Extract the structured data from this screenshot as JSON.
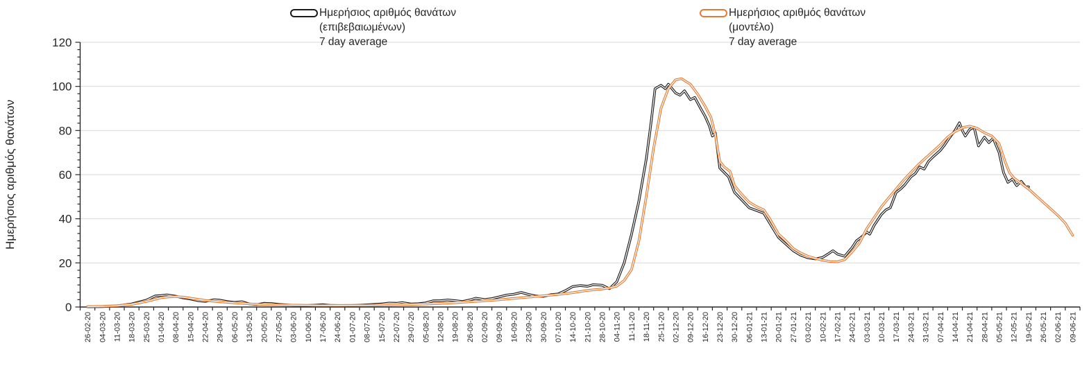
{
  "chart_data": {
    "type": "line",
    "title": "",
    "xlabel": "",
    "ylabel": "Ημερήσιος αριθμός θανάτων",
    "ylim": [
      0,
      120
    ],
    "y_ticks": [
      0,
      20,
      40,
      60,
      80,
      100,
      120
    ],
    "y_minor_ticks_per_major": 6,
    "grid": "horizontal-major-only",
    "legend_position": "top",
    "x_tick_label_rotation": -90,
    "categories": [
      "26-02-20",
      "04-03-20",
      "11-03-20",
      "18-03-20",
      "25-03-20",
      "01-04-20",
      "08-04-20",
      "15-04-20",
      "22-04-20",
      "29-04-20",
      "06-05-20",
      "13-05-20",
      "20-05-20",
      "27-05-20",
      "03-06-20",
      "10-06-20",
      "17-06-20",
      "24-06-20",
      "01-07-20",
      "08-07-20",
      "15-07-20",
      "22-07-20",
      "29-07-20",
      "05-08-20",
      "12-08-20",
      "19-08-20",
      "26-08-20",
      "02-09-20",
      "09-09-20",
      "16-09-20",
      "23-09-20",
      "30-09-20",
      "07-10-20",
      "14-10-20",
      "21-10-20",
      "28-10-20",
      "04-11-20",
      "11-11-20",
      "18-11-20",
      "25-11-20",
      "02-12-20",
      "09-12-20",
      "16-12-20",
      "23-12-20",
      "30-12-20",
      "06-01-21",
      "13-01-21",
      "20-01-21",
      "27-01-21",
      "03-02-21",
      "10-02-21",
      "17-02-21",
      "24-02-21",
      "03-03-21",
      "10-03-21",
      "17-03-21",
      "24-03-21",
      "31-03-21",
      "07-04-21",
      "14-04-21",
      "21-04-21",
      "28-04-21",
      "05-05-21",
      "12-05-21",
      "19-05-21",
      "26-05-21",
      "02-06-21",
      "09-06-21"
    ],
    "series": [
      {
        "name": "Ημερήσιος αριθμός θανάτων (επιβεβαιωμένων) 7 day average",
        "legend_lines": [
          "Ημερήσιος αριθμός θανάτων",
          "(επιβεβαιωμένων)",
          "7 day average"
        ],
        "color": "#1a1a1a",
        "points": [
          [
            0,
            0.1
          ],
          [
            1,
            0.2
          ],
          [
            2,
            0.5
          ],
          [
            3,
            1.4
          ],
          [
            4,
            3.1
          ],
          [
            4.6,
            5.0
          ],
          [
            5,
            5.2
          ],
          [
            5.4,
            5.5
          ],
          [
            6,
            4.9
          ],
          [
            6.5,
            4.1
          ],
          [
            7,
            3.6
          ],
          [
            7.5,
            2.9
          ],
          [
            8,
            2.5
          ],
          [
            8.6,
            3.3
          ],
          [
            9,
            3.1
          ],
          [
            9.5,
            2.5
          ],
          [
            10,
            2.1
          ],
          [
            10.5,
            2.4
          ],
          [
            11,
            1.4
          ],
          [
            11.5,
            1.1
          ],
          [
            12,
            1.7
          ],
          [
            12.5,
            1.6
          ],
          [
            13,
            1.2
          ],
          [
            14,
            0.8
          ],
          [
            15,
            0.7
          ],
          [
            16,
            1.1
          ],
          [
            16.5,
            0.8
          ],
          [
            17,
            0.7
          ],
          [
            18,
            0.7
          ],
          [
            19,
            1.0
          ],
          [
            20,
            1.4
          ],
          [
            20.5,
            1.8
          ],
          [
            21,
            1.7
          ],
          [
            21.4,
            2.0
          ],
          [
            22,
            1.4
          ],
          [
            22.5,
            1.5
          ],
          [
            23,
            1.9
          ],
          [
            23.5,
            2.8
          ],
          [
            24,
            2.9
          ],
          [
            24.5,
            3.2
          ],
          [
            25,
            2.9
          ],
          [
            25.5,
            2.5
          ],
          [
            26,
            3.2
          ],
          [
            26.4,
            4.0
          ],
          [
            27,
            3.4
          ],
          [
            27.5,
            3.8
          ],
          [
            28,
            4.6
          ],
          [
            28.5,
            5.4
          ],
          [
            29,
            5.8
          ],
          [
            29.5,
            6.6
          ],
          [
            30,
            5.7
          ],
          [
            30.5,
            5.0
          ],
          [
            31,
            4.8
          ],
          [
            31.5,
            5.6
          ],
          [
            32,
            5.9
          ],
          [
            32.5,
            7.4
          ],
          [
            33,
            9.3
          ],
          [
            33.5,
            9.7
          ],
          [
            34,
            9.4
          ],
          [
            34.4,
            10.1
          ],
          [
            35,
            9.9
          ],
          [
            35.5,
            8.3
          ],
          [
            36,
            11.5
          ],
          [
            36.5,
            20
          ],
          [
            37,
            33
          ],
          [
            37.5,
            48
          ],
          [
            38,
            67
          ],
          [
            38.3,
            82
          ],
          [
            38.6,
            99
          ],
          [
            39,
            100.5
          ],
          [
            39.3,
            99
          ],
          [
            39.5,
            101
          ],
          [
            40,
            97
          ],
          [
            40.3,
            96
          ],
          [
            40.6,
            98
          ],
          [
            41,
            94
          ],
          [
            41.3,
            95
          ],
          [
            41.7,
            90
          ],
          [
            42,
            86.5
          ],
          [
            42.3,
            82
          ],
          [
            42.5,
            77.5
          ],
          [
            42.7,
            79
          ],
          [
            43,
            63
          ],
          [
            43.3,
            61
          ],
          [
            43.6,
            59
          ],
          [
            44,
            52
          ],
          [
            44.5,
            48.5
          ],
          [
            45,
            45
          ],
          [
            45.4,
            44
          ],
          [
            46,
            42.5
          ],
          [
            46.4,
            38
          ],
          [
            47,
            31.5
          ],
          [
            47.5,
            28.5
          ],
          [
            48,
            25.5
          ],
          [
            48.5,
            23.5
          ],
          [
            49,
            22.3
          ],
          [
            49.5,
            21.8
          ],
          [
            50,
            22.5
          ],
          [
            50.4,
            24.2
          ],
          [
            50.7,
            25.5
          ],
          [
            51,
            24
          ],
          [
            51.5,
            23
          ],
          [
            52,
            27
          ],
          [
            52.3,
            30
          ],
          [
            52.6,
            31.5
          ],
          [
            53,
            34
          ],
          [
            53.2,
            33
          ],
          [
            53.5,
            37
          ],
          [
            54,
            42
          ],
          [
            54.3,
            44
          ],
          [
            54.6,
            45
          ],
          [
            55,
            52
          ],
          [
            55.3,
            53.5
          ],
          [
            55.6,
            55.5
          ],
          [
            56,
            59
          ],
          [
            56.3,
            60.5
          ],
          [
            56.6,
            63.5
          ],
          [
            56.9,
            62.5
          ],
          [
            57.2,
            66
          ],
          [
            57.5,
            68
          ],
          [
            58,
            71
          ],
          [
            58.3,
            73.5
          ],
          [
            58.6,
            76.5
          ],
          [
            59,
            80
          ],
          [
            59.3,
            83.5
          ],
          [
            59.5,
            80
          ],
          [
            59.7,
            77.5
          ],
          [
            60,
            80.5
          ],
          [
            60.3,
            81.5
          ],
          [
            60.6,
            73
          ],
          [
            61,
            77
          ],
          [
            61.3,
            74.5
          ],
          [
            61.6,
            76.5
          ],
          [
            62,
            70
          ],
          [
            62.3,
            61
          ],
          [
            62.6,
            56.5
          ],
          [
            62.9,
            58
          ],
          [
            63.2,
            55
          ],
          [
            63.5,
            57
          ],
          [
            63.8,
            54.5
          ],
          [
            64,
            54.5
          ]
        ]
      },
      {
        "name": "Ημερήσιος αριθμός θανάτων (μοντέλο) 7 day average",
        "legend_lines": [
          "Ημερήσιος αριθμός θανάτων",
          "(μοντέλο)",
          "7 day average"
        ],
        "color": "#E8792F",
        "points": [
          [
            0,
            0.2
          ],
          [
            1,
            0.3
          ],
          [
            2,
            0.6
          ],
          [
            3,
            1.2
          ],
          [
            4,
            2.5
          ],
          [
            5,
            4.2
          ],
          [
            5.5,
            4.6
          ],
          [
            6,
            4.7
          ],
          [
            6.5,
            4.5
          ],
          [
            7,
            4.0
          ],
          [
            8,
            3.0
          ],
          [
            9,
            2.4
          ],
          [
            10,
            1.9
          ],
          [
            11,
            1.4
          ],
          [
            12,
            1.1
          ],
          [
            13,
            0.95
          ],
          [
            14,
            0.85
          ],
          [
            15,
            0.8
          ],
          [
            16,
            0.75
          ],
          [
            17,
            0.72
          ],
          [
            18,
            0.75
          ],
          [
            19,
            0.8
          ],
          [
            20,
            0.9
          ],
          [
            21,
            1.0
          ],
          [
            22,
            1.15
          ],
          [
            23,
            1.35
          ],
          [
            24,
            1.6
          ],
          [
            25,
            1.95
          ],
          [
            26,
            2.35
          ],
          [
            27,
            2.8
          ],
          [
            28,
            3.3
          ],
          [
            29,
            3.9
          ],
          [
            30,
            4.5
          ],
          [
            31,
            5.1
          ],
          [
            32,
            5.7
          ],
          [
            33,
            6.5
          ],
          [
            34,
            7.5
          ],
          [
            35,
            8.2
          ],
          [
            35.5,
            8.6
          ],
          [
            36,
            9.5
          ],
          [
            36.5,
            12
          ],
          [
            37,
            17
          ],
          [
            37.5,
            30
          ],
          [
            38,
            50
          ],
          [
            38.5,
            72
          ],
          [
            39,
            90
          ],
          [
            39.5,
            99
          ],
          [
            40,
            103
          ],
          [
            40.4,
            103.5
          ],
          [
            41,
            101
          ],
          [
            41.5,
            96.5
          ],
          [
            42,
            91
          ],
          [
            42.4,
            86
          ],
          [
            42.7,
            78
          ],
          [
            43,
            66
          ],
          [
            43.3,
            63.5
          ],
          [
            43.7,
            61.5
          ],
          [
            44,
            55
          ],
          [
            44.5,
            51
          ],
          [
            45,
            47.5
          ],
          [
            45.5,
            45.5
          ],
          [
            46,
            44
          ],
          [
            46.4,
            40
          ],
          [
            47,
            33
          ],
          [
            47.5,
            30
          ],
          [
            48,
            26.5
          ],
          [
            48.5,
            24.5
          ],
          [
            49,
            23
          ],
          [
            49.5,
            22
          ],
          [
            50,
            21.2
          ],
          [
            50.5,
            20.6
          ],
          [
            51,
            20.5
          ],
          [
            51.5,
            21.5
          ],
          [
            52,
            25
          ],
          [
            52.5,
            29
          ],
          [
            53,
            35.5
          ],
          [
            53.5,
            40.5
          ],
          [
            54,
            45.5
          ],
          [
            54.5,
            49.5
          ],
          [
            55,
            53.5
          ],
          [
            55.5,
            57.5
          ],
          [
            56,
            61
          ],
          [
            56.5,
            64.5
          ],
          [
            57,
            67.5
          ],
          [
            57.5,
            70.5
          ],
          [
            58,
            73.5
          ],
          [
            58.5,
            77
          ],
          [
            59,
            79.5
          ],
          [
            59.6,
            81.5
          ],
          [
            60,
            82
          ],
          [
            60.5,
            81
          ],
          [
            61,
            79
          ],
          [
            61.5,
            77.5
          ],
          [
            62,
            74
          ],
          [
            62.4,
            66
          ],
          [
            62.7,
            61
          ],
          [
            63,
            58.5
          ],
          [
            63.5,
            56
          ],
          [
            64,
            53.5
          ],
          [
            64.5,
            50.5
          ],
          [
            65,
            47.5
          ],
          [
            65.5,
            44.5
          ],
          [
            66,
            41.5
          ],
          [
            66.5,
            38
          ],
          [
            67,
            32.5
          ]
        ]
      }
    ],
    "colors": {
      "grid": "#D9D9D9",
      "axis": "#262626",
      "text": "#262626",
      "background": "#FFFFFF"
    }
  }
}
